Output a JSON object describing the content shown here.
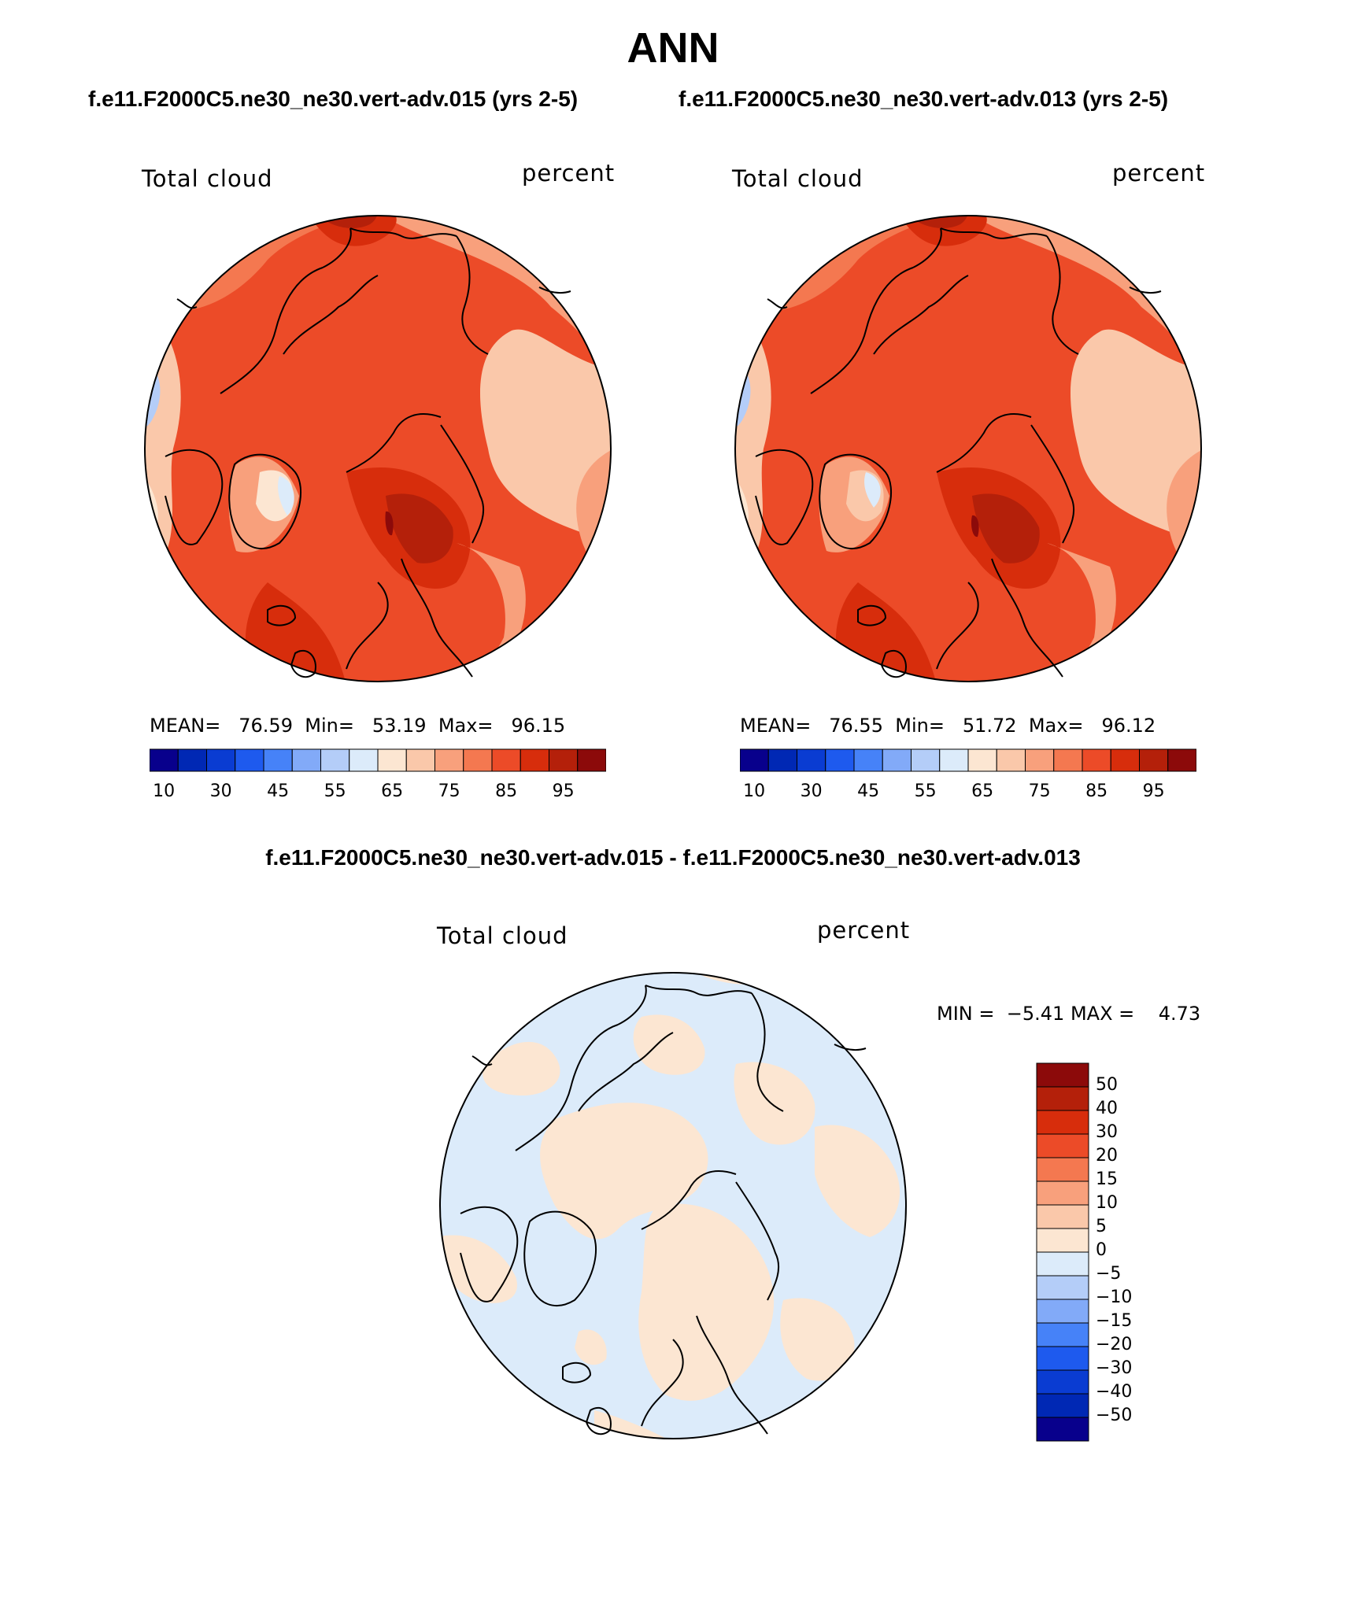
{
  "title": "ANN",
  "panels": [
    {
      "case_title": "f.e11.F2000C5.ne30_ne30.vert-adv.015 (yrs 2-5)",
      "variable": "Total cloud",
      "units": "percent",
      "mean_label": "MEAN=",
      "mean": "76.59",
      "min_label": "Min=",
      "min": "53.19",
      "max_label": "Max=",
      "max": "96.15"
    },
    {
      "case_title": "f.e11.F2000C5.ne30_ne30.vert-adv.013 (yrs 2-5)",
      "variable": "Total cloud",
      "units": "percent",
      "mean_label": "MEAN=",
      "mean": "76.55",
      "min_label": "Min=",
      "min": "51.72",
      "max_label": "Max=",
      "max": "96.12"
    }
  ],
  "colorbar": {
    "colors": [
      "#08008c",
      "#0028b4",
      "#0a3cd2",
      "#1e5aee",
      "#4682f8",
      "#82aaf8",
      "#b4cdf8",
      "#dcebfa",
      "#fce6d2",
      "#fac8aa",
      "#f8a07c",
      "#f47850",
      "#ec4b28",
      "#d72d0c",
      "#b4200a",
      "#8c0a0a"
    ],
    "ticks": [
      "10",
      "30",
      "45",
      "55",
      "65",
      "75",
      "85",
      "95"
    ]
  },
  "diff": {
    "title": "f.e11.F2000C5.ne30_ne30.vert-adv.015 - f.e11.F2000C5.ne30_ne30.vert-adv.013",
    "variable": "Total cloud",
    "units": "percent",
    "min_label": "MIN =",
    "min": "−5.41",
    "max_label": "MAX =",
    "max": "4.73",
    "colorbar": {
      "colors": [
        "#8c0a0a",
        "#b4200a",
        "#d72d0c",
        "#ec4b28",
        "#f47850",
        "#f8a07c",
        "#fac8aa",
        "#fce6d2",
        "#dcebfa",
        "#b4cdf8",
        "#82aaf8",
        "#4682f8",
        "#1e5aee",
        "#0a3cd2",
        "#0028b4",
        "#08008c"
      ],
      "labels": [
        "50",
        "40",
        "30",
        "20",
        "15",
        "10",
        "5",
        "0",
        "−5",
        "−10",
        "−15",
        "−20",
        "−30",
        "−40",
        "−50"
      ]
    }
  }
}
